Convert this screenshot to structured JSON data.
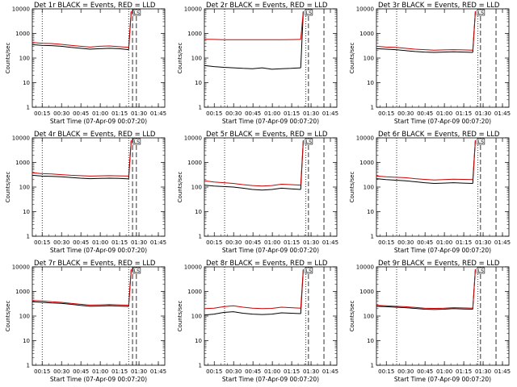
{
  "colors": {
    "events": "#000000",
    "lld": "#cc0000",
    "axis": "#000000"
  },
  "chart_data": [
    {
      "type": "line",
      "title": "Det 1r BLACK = Events, RED = LLD",
      "xlabel": "Start Time (07-Apr-09 00:07:20)",
      "ylabel": "Counts/sec",
      "yscale": "log",
      "ylim": [
        1,
        10000
      ],
      "xticks": [
        "00:15",
        "00:30",
        "00:45",
        "01:00",
        "01:15",
        "01:30",
        "01:45"
      ],
      "yticks": [
        "1",
        "10",
        "100",
        "1000",
        "10000"
      ],
      "vlines": [
        {
          "label": "00:15",
          "style": "dotted"
        },
        {
          "label": "01:22",
          "style": "dotted"
        },
        {
          "label": "01:25",
          "style": "dashed"
        },
        {
          "label": "01:28",
          "style": "dashed"
        }
      ],
      "annotation": "LS",
      "series": [
        {
          "name": "Events",
          "values": [
            350,
            330,
            320,
            300,
            270,
            250,
            230,
            240,
            250,
            240,
            220
          ]
        },
        {
          "name": "LLD",
          "values": [
            430,
            400,
            390,
            360,
            330,
            300,
            280,
            300,
            310,
            290,
            270
          ]
        }
      ]
    },
    {
      "type": "line",
      "title": "Det 2r BLACK = Events, RED = LLD",
      "xlabel": "Start Time (07-Apr-09 00:07:20)",
      "ylabel": "Counts/sec",
      "yscale": "log",
      "ylim": [
        1,
        10000
      ],
      "xticks": [
        "00:15",
        "00:30",
        "00:45",
        "01:00",
        "01:15",
        "01:30",
        "01:45"
      ],
      "yticks": [
        "1",
        "10",
        "100",
        "1000",
        "10000"
      ],
      "vlines": [
        {
          "label": "00:23",
          "style": "dotted"
        },
        {
          "label": "01:26",
          "style": "dotted"
        },
        {
          "label": "01:28",
          "style": "dashed"
        },
        {
          "label": "01:40",
          "style": "dashed"
        }
      ],
      "annotation": "LS",
      "series": [
        {
          "name": "Events",
          "values": [
            50,
            45,
            42,
            40,
            38,
            37,
            40,
            35,
            37,
            38,
            40
          ]
        },
        {
          "name": "LLD",
          "values": [
            580,
            570,
            560,
            560,
            560,
            555,
            560,
            555,
            560,
            565,
            570
          ]
        }
      ]
    },
    {
      "type": "line",
      "title": "Det 3r BLACK = Events, RED = LLD",
      "xlabel": "Start Time (07-Apr-09 00:07:20)",
      "ylabel": "Counts/sec",
      "yscale": "log",
      "ylim": [
        1,
        10000
      ],
      "xticks": [
        "00:15",
        "00:30",
        "00:45",
        "01:00",
        "01:15",
        "01:30",
        "01:45"
      ],
      "yticks": [
        "1",
        "10",
        "100",
        "1000",
        "10000"
      ],
      "vlines": [
        {
          "label": "00:23",
          "style": "dotted"
        },
        {
          "label": "01:26",
          "style": "dotted"
        },
        {
          "label": "01:28",
          "style": "dashed"
        },
        {
          "label": "01:40",
          "style": "dashed"
        }
      ],
      "annotation": "LS",
      "series": [
        {
          "name": "Events",
          "values": [
            240,
            230,
            220,
            200,
            185,
            175,
            170,
            175,
            180,
            175,
            170
          ]
        },
        {
          "name": "LLD",
          "values": [
            300,
            280,
            270,
            250,
            230,
            220,
            210,
            215,
            220,
            215,
            210
          ]
        }
      ]
    },
    {
      "type": "line",
      "title": "Det 4r BLACK = Events, RED = LLD",
      "xlabel": "Start Time (07-Apr-09 00:07:20)",
      "ylabel": "Counts/sec",
      "yscale": "log",
      "ylim": [
        1,
        10000
      ],
      "xticks": [
        "00:15",
        "00:30",
        "00:45",
        "01:00",
        "01:15",
        "01:30",
        "01:45"
      ],
      "yticks": [
        "1",
        "10",
        "100",
        "1000",
        "10000"
      ],
      "vlines": [
        {
          "label": "00:15",
          "style": "dotted"
        },
        {
          "label": "01:22",
          "style": "dotted"
        },
        {
          "label": "01:25",
          "style": "dashed"
        },
        {
          "label": "01:28",
          "style": "dashed"
        }
      ],
      "annotation": "LS",
      "series": [
        {
          "name": "Events",
          "values": [
            300,
            280,
            270,
            260,
            245,
            230,
            220,
            225,
            230,
            225,
            215
          ]
        },
        {
          "name": "LLD",
          "values": [
            380,
            350,
            340,
            320,
            300,
            290,
            280,
            285,
            290,
            285,
            280
          ]
        }
      ]
    },
    {
      "type": "line",
      "title": "Det 5r BLACK = Events, RED = LLD",
      "xlabel": "Start Time (07-Apr-09 00:07:20)",
      "ylabel": "Counts/sec",
      "yscale": "log",
      "ylim": [
        1,
        10000
      ],
      "xticks": [
        "00:15",
        "00:30",
        "00:45",
        "01:00",
        "01:15",
        "01:30",
        "01:45"
      ],
      "yticks": [
        "1",
        "10",
        "100",
        "1000",
        "10000"
      ],
      "vlines": [
        {
          "label": "00:23",
          "style": "dotted"
        },
        {
          "label": "01:26",
          "style": "dotted"
        },
        {
          "label": "01:28",
          "style": "dashed"
        },
        {
          "label": "01:40",
          "style": "dashed"
        }
      ],
      "annotation": "LS",
      "series": [
        {
          "name": "Events",
          "values": [
            120,
            110,
            105,
            100,
            90,
            80,
            75,
            80,
            90,
            85,
            80
          ]
        },
        {
          "name": "LLD",
          "values": [
            180,
            160,
            150,
            140,
            125,
            115,
            110,
            115,
            130,
            125,
            120
          ]
        }
      ]
    },
    {
      "type": "line",
      "title": "Det 6r BLACK = Events, RED = LLD",
      "xlabel": "Start Time (07-Apr-09 00:07:20)",
      "ylabel": "Counts/sec",
      "yscale": "log",
      "ylim": [
        1,
        10000
      ],
      "xticks": [
        "00:15",
        "00:30",
        "00:45",
        "01:00",
        "01:15",
        "01:30",
        "01:45"
      ],
      "yticks": [
        "1",
        "10",
        "100",
        "1000",
        "10000"
      ],
      "vlines": [
        {
          "label": "00:23",
          "style": "dotted"
        },
        {
          "label": "01:26",
          "style": "dotted"
        },
        {
          "label": "01:28",
          "style": "dashed"
        },
        {
          "label": "01:40",
          "style": "dashed"
        }
      ],
      "annotation": "LS",
      "series": [
        {
          "name": "Events",
          "values": [
            220,
            200,
            190,
            180,
            165,
            150,
            140,
            145,
            150,
            145,
            140
          ]
        },
        {
          "name": "LLD",
          "values": [
            280,
            260,
            250,
            240,
            220,
            205,
            195,
            200,
            210,
            205,
            200
          ]
        }
      ]
    },
    {
      "type": "line",
      "title": "Det 7r BLACK = Events, RED = LLD",
      "xlabel": "Start Time (07-Apr-09 00:07:20)",
      "ylabel": "Counts/sec",
      "yscale": "log",
      "ylim": [
        1,
        10000
      ],
      "xticks": [
        "00:15",
        "00:30",
        "00:45",
        "01:00",
        "01:15",
        "01:30",
        "01:45"
      ],
      "yticks": [
        "1",
        "10",
        "100",
        "1000",
        "10000"
      ],
      "vlines": [
        {
          "label": "00:15",
          "style": "dotted"
        },
        {
          "label": "01:22",
          "style": "dotted"
        },
        {
          "label": "01:25",
          "style": "dashed"
        },
        {
          "label": "01:28",
          "style": "dashed"
        }
      ],
      "annotation": "LS",
      "series": [
        {
          "name": "Events",
          "values": [
            380,
            360,
            340,
            330,
            300,
            270,
            250,
            255,
            265,
            255,
            245
          ]
        },
        {
          "name": "LLD",
          "values": [
            430,
            410,
            380,
            360,
            330,
            300,
            280,
            285,
            295,
            285,
            275
          ]
        }
      ]
    },
    {
      "type": "line",
      "title": "Det 8r BLACK = Events, RED = LLD",
      "xlabel": "Start Time (07-Apr-09 00:07:20)",
      "ylabel": "Counts/sec",
      "yscale": "log",
      "ylim": [
        1,
        10000
      ],
      "xticks": [
        "00:15",
        "00:30",
        "00:45",
        "01:00",
        "01:15",
        "01:30",
        "01:45"
      ],
      "yticks": [
        "1",
        "10",
        "100",
        "1000",
        "10000"
      ],
      "vlines": [
        {
          "label": "00:23",
          "style": "dotted"
        },
        {
          "label": "01:26",
          "style": "dotted"
        },
        {
          "label": "01:28",
          "style": "dashed"
        },
        {
          "label": "01:40",
          "style": "dashed"
        }
      ],
      "annotation": "LS",
      "series": [
        {
          "name": "Events",
          "values": [
            110,
            120,
            140,
            150,
            130,
            120,
            115,
            120,
            135,
            130,
            125
          ]
        },
        {
          "name": "LLD",
          "values": [
            200,
            210,
            240,
            260,
            230,
            210,
            200,
            205,
            230,
            220,
            210
          ]
        }
      ]
    },
    {
      "type": "line",
      "title": "Det 9r BLACK = Events, RED = LLD",
      "xlabel": "Start Time (07-Apr-09 00:07:20)",
      "ylabel": "Counts/sec",
      "yscale": "log",
      "ylim": [
        1,
        10000
      ],
      "xticks": [
        "00:15",
        "00:30",
        "00:45",
        "01:00",
        "01:15",
        "01:30",
        "01:45"
      ],
      "yticks": [
        "1",
        "10",
        "100",
        "1000",
        "10000"
      ],
      "vlines": [
        {
          "label": "00:23",
          "style": "dotted"
        },
        {
          "label": "01:26",
          "style": "dotted"
        },
        {
          "label": "01:28",
          "style": "dashed"
        },
        {
          "label": "01:40",
          "style": "dashed"
        }
      ],
      "annotation": "LS",
      "series": [
        {
          "name": "Events",
          "values": [
            250,
            240,
            230,
            220,
            205,
            190,
            185,
            190,
            200,
            195,
            190
          ]
        },
        {
          "name": "LLD",
          "values": [
            270,
            260,
            250,
            240,
            225,
            210,
            205,
            210,
            220,
            215,
            210
          ]
        }
      ]
    }
  ]
}
